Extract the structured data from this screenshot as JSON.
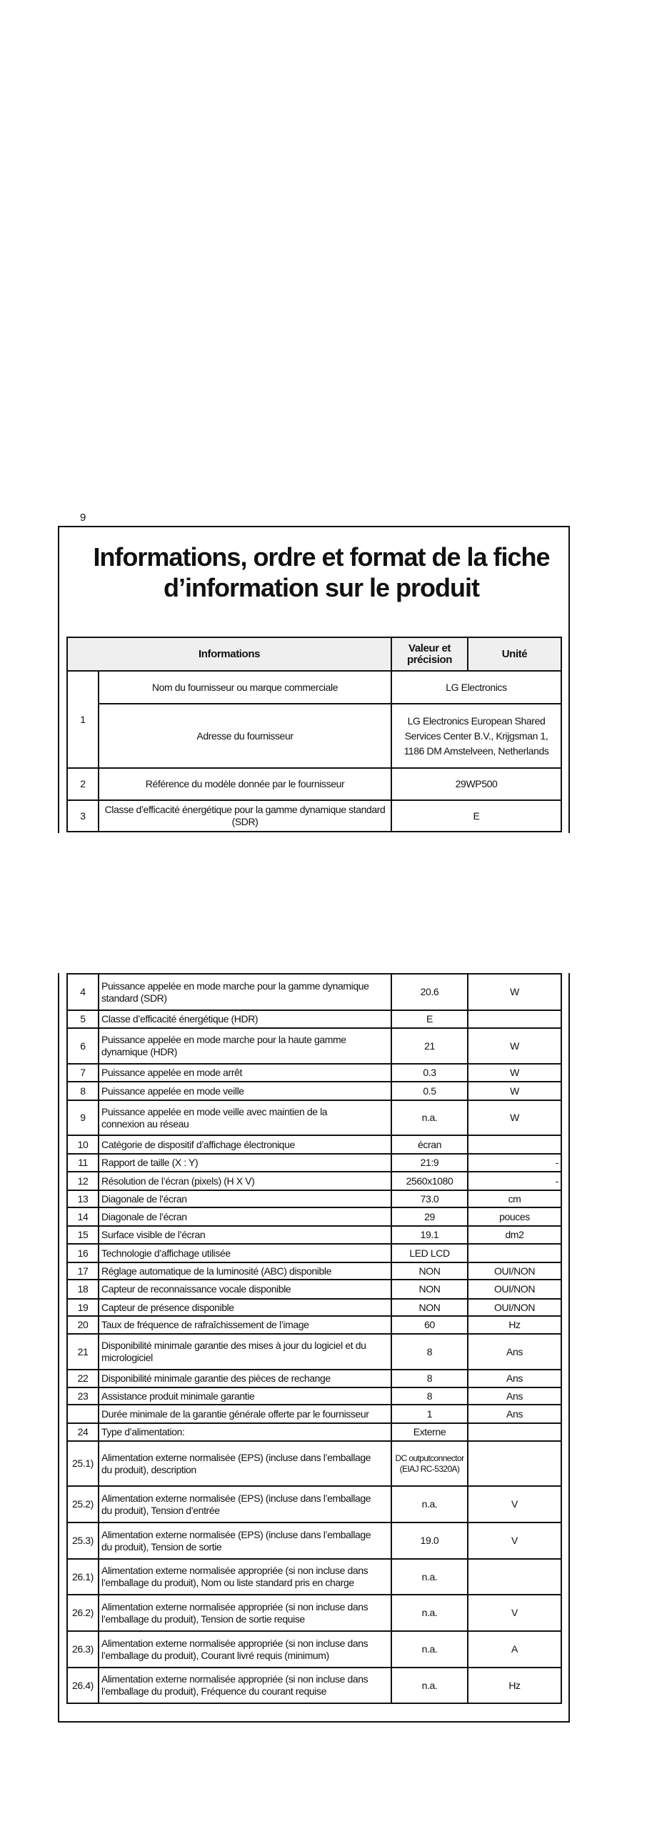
{
  "page_number": "9",
  "title": "Informations, ordre et format de la fiche d’information sur le produit",
  "header": {
    "info": "Informations",
    "value": "Valeur et précision",
    "unit": "Unité"
  },
  "part1": {
    "row1": {
      "num": "1",
      "supplier_label": "Nom du fournisseur ou marque commerciale",
      "supplier_value": "LG Electronics",
      "address_label": "Adresse du fournisseur",
      "address_value": "LG Electronics European Shared Services Center B.V., Krijgsman 1, 1186 DM Amstelveen, Netherlands"
    },
    "row2": {
      "num": "2",
      "desc": "Référence du modèle donnée par le fournisseur",
      "value": "29WP500"
    },
    "row3": {
      "num": "3",
      "desc": "Classe d’efficacité énergétique pour la gamme dynamique standard (SDR)",
      "value": "E"
    }
  },
  "rows": [
    {
      "num": "4",
      "desc": "Puissance appelée en mode marche pour la gamme dynamique\nstandard (SDR)",
      "value": "20.6",
      "unit": "W"
    },
    {
      "num": "5",
      "desc": "Classe d’efficacité énergétique (HDR)",
      "value": "E",
      "unit": ""
    },
    {
      "num": "6",
      "desc": "Puissance appelée en mode marche pour la haute gamme\ndynamique (HDR)",
      "value": "21",
      "unit": "W"
    },
    {
      "num": "7",
      "desc": "Puissance appelée en mode arrêt",
      "value": "0.3",
      "unit": "W"
    },
    {
      "num": "8",
      "desc": "Puissance appelée en mode veille",
      "value": "0.5",
      "unit": "W"
    },
    {
      "num": "9",
      "desc": "Puissance appelée en mode veille avec maintien de la\nconnexion au réseau",
      "value": "n.a.",
      "unit": "W"
    },
    {
      "num": "10",
      "desc": "Catégorie de dispositif d’affichage électronique",
      "value": "écran",
      "unit": ""
    },
    {
      "num": "11",
      "desc": "Rapport de taille (X : Y)",
      "value": "21:9",
      "unit": "-"
    },
    {
      "num": "12",
      "desc": "Résolution de l’écran (pixels) (H X V)",
      "value": "2560x1080",
      "unit": "-"
    },
    {
      "num": "13",
      "desc": "Diagonale de l’écran",
      "value": "73.0",
      "unit": "cm"
    },
    {
      "num": "14",
      "desc": "Diagonale de l’écran",
      "value": "29",
      "unit": "pouces"
    },
    {
      "num": "15",
      "desc": "Surface visible de l’écran",
      "value": "19.1",
      "unit": "dm2"
    },
    {
      "num": "16",
      "desc": "Technologie d’affichage utilisée",
      "value": "LED LCD",
      "unit": ""
    },
    {
      "num": "17",
      "desc": "Réglage automatique de la luminosité (ABC) disponible",
      "value": "NON",
      "unit": "OUI/NON"
    },
    {
      "num": "18",
      "desc": "Capteur de reconnaissance vocale disponible",
      "value": "NON",
      "unit": "OUI/NON"
    },
    {
      "num": "19",
      "desc": "Capteur de présence disponible",
      "value": "NON",
      "unit": "OUI/NON"
    },
    {
      "num": "20",
      "desc": "Taux de fréquence de rafraîchissement de l’image",
      "value": "60",
      "unit": "Hz"
    },
    {
      "num": "21",
      "desc": "Disponibilité minimale garantie des mises à jour du logiciel et du\nmicrologiciel",
      "value": "8",
      "unit": "Ans"
    },
    {
      "num": "22",
      "desc": "Disponibilité minimale garantie des pièces de rechange",
      "value": "8",
      "unit": "Ans"
    },
    {
      "num": "23",
      "desc": "Assistance produit minimale garantie",
      "value": "8",
      "unit": "Ans"
    },
    {
      "num": "",
      "desc": "Durée minimale de la garantie générale offerte par le fournisseur",
      "value": "1",
      "unit": "Ans"
    },
    {
      "num": "24",
      "desc": "Type d’alimentation:",
      "value": "Externe",
      "unit": ""
    },
    {
      "num": "25.1)",
      "desc": "Alimentation externe normalisée (EPS) (incluse dans l’emballage\ndu produit), description",
      "value": "DC outputconnector\n(EIAJ RC-5320A)",
      "unit": ""
    },
    {
      "num": "25.2)",
      "desc": "Alimentation externe normalisée (EPS) (incluse dans l’emballage\ndu produit), Tension d’entrée",
      "value": "n.a.",
      "unit": "V"
    },
    {
      "num": "25.3)",
      "desc": "Alimentation externe normalisée (EPS) (incluse dans l’emballage\ndu produit), Tension de sortie",
      "value": "19.0",
      "unit": "V"
    },
    {
      "num": "26.1)",
      "desc": "Alimentation externe normalisée appropriée (si non incluse dans\nl’emballage du produit), Nom ou liste standard pris en charge",
      "value": "n.a.",
      "unit": ""
    },
    {
      "num": "26.2)",
      "desc": "Alimentation externe normalisée appropriée (si non incluse dans\nl’emballage du produit), Tension de sortie requise",
      "value": "n.a.",
      "unit": "V"
    },
    {
      "num": "26.3)",
      "desc": "Alimentation externe normalisée appropriée (si non incluse dans\nl’emballage du produit), Courant livré requis (minimum)",
      "value": "n.a.",
      "unit": "A"
    },
    {
      "num": "26.4)",
      "desc": "Alimentation externe normalisée appropriée (si non incluse dans\nl’emballage du produit), Fréquence du courant requise",
      "value": "n.a.",
      "unit": "Hz"
    }
  ]
}
